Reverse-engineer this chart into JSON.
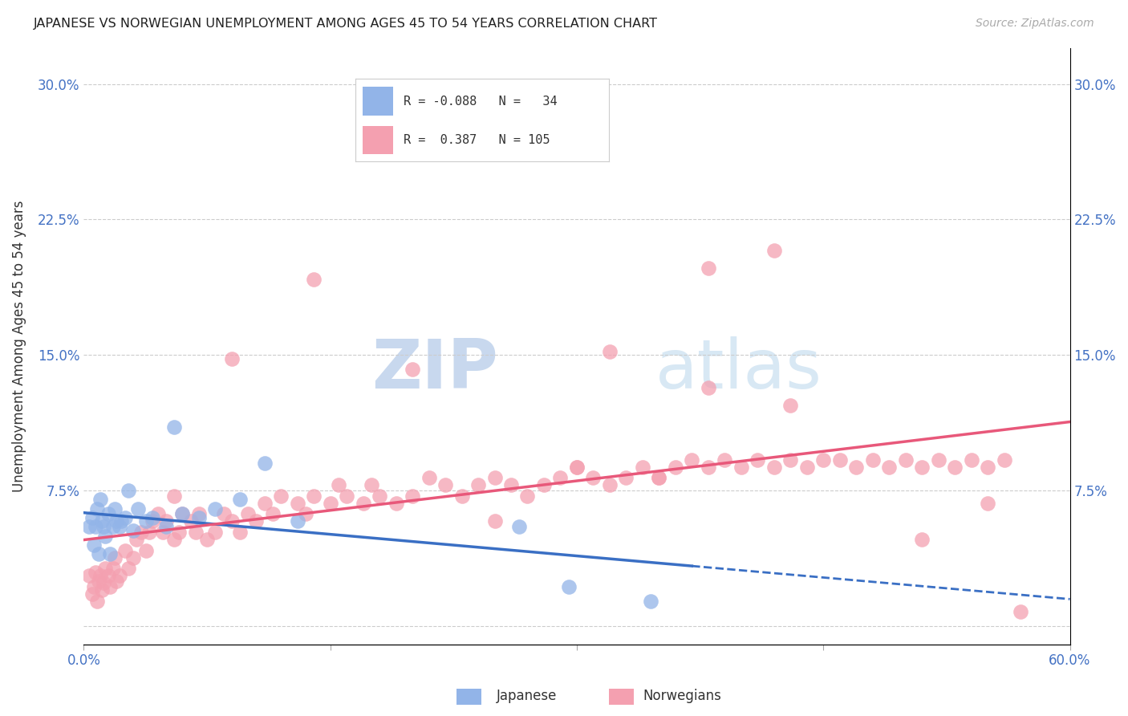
{
  "title": "JAPANESE VS NORWEGIAN UNEMPLOYMENT AMONG AGES 45 TO 54 YEARS CORRELATION CHART",
  "source": "Source: ZipAtlas.com",
  "ylabel": "Unemployment Among Ages 45 to 54 years",
  "xlim": [
    0.0,
    0.6
  ],
  "ylim": [
    -0.01,
    0.32
  ],
  "legend_r_japanese": "-0.088",
  "legend_n_japanese": "34",
  "legend_r_norwegian": "0.387",
  "legend_n_norwegian": "105",
  "japanese_color": "#92b4e8",
  "norwegian_color": "#f4a0b0",
  "japanese_line_color": "#3a6fc4",
  "norwegian_line_color": "#e8587a",
  "background_color": "#ffffff",
  "grid_color": "#cccccc",
  "japanese_x": [
    0.003,
    0.005,
    0.006,
    0.007,
    0.008,
    0.009,
    0.01,
    0.011,
    0.012,
    0.013,
    0.015,
    0.016,
    0.018,
    0.019,
    0.02,
    0.022,
    0.023,
    0.025,
    0.027,
    0.03,
    0.033,
    0.038,
    0.042,
    0.05,
    0.055,
    0.06,
    0.07,
    0.08,
    0.095,
    0.11,
    0.13,
    0.265,
    0.295,
    0.345
  ],
  "japanese_y": [
    0.055,
    0.06,
    0.045,
    0.055,
    0.065,
    0.04,
    0.07,
    0.058,
    0.055,
    0.05,
    0.062,
    0.04,
    0.055,
    0.065,
    0.058,
    0.055,
    0.058,
    0.06,
    0.075,
    0.053,
    0.065,
    0.058,
    0.06,
    0.055,
    0.11,
    0.062,
    0.06,
    0.065,
    0.07,
    0.09,
    0.058,
    0.055,
    0.022,
    0.014
  ],
  "norwegian_x": [
    0.003,
    0.005,
    0.006,
    0.007,
    0.008,
    0.009,
    0.01,
    0.011,
    0.012,
    0.013,
    0.015,
    0.016,
    0.018,
    0.019,
    0.02,
    0.022,
    0.025,
    0.027,
    0.03,
    0.032,
    0.035,
    0.038,
    0.04,
    0.042,
    0.045,
    0.048,
    0.05,
    0.055,
    0.058,
    0.06,
    0.065,
    0.068,
    0.07,
    0.075,
    0.08,
    0.085,
    0.09,
    0.095,
    0.1,
    0.105,
    0.11,
    0.115,
    0.12,
    0.13,
    0.135,
    0.14,
    0.15,
    0.155,
    0.16,
    0.17,
    0.175,
    0.18,
    0.19,
    0.2,
    0.21,
    0.22,
    0.23,
    0.24,
    0.25,
    0.26,
    0.27,
    0.28,
    0.29,
    0.3,
    0.31,
    0.32,
    0.33,
    0.34,
    0.35,
    0.36,
    0.37,
    0.38,
    0.39,
    0.4,
    0.41,
    0.42,
    0.43,
    0.44,
    0.45,
    0.46,
    0.47,
    0.48,
    0.49,
    0.5,
    0.51,
    0.52,
    0.53,
    0.54,
    0.55,
    0.56,
    0.055,
    0.09,
    0.14,
    0.2,
    0.32,
    0.38,
    0.43,
    0.35,
    0.51,
    0.55,
    0.38,
    0.42,
    0.25,
    0.3,
    0.57
  ],
  "norwegian_y": [
    0.028,
    0.018,
    0.022,
    0.03,
    0.014,
    0.025,
    0.028,
    0.02,
    0.024,
    0.032,
    0.028,
    0.022,
    0.032,
    0.038,
    0.025,
    0.028,
    0.042,
    0.032,
    0.038,
    0.048,
    0.052,
    0.042,
    0.052,
    0.058,
    0.062,
    0.052,
    0.058,
    0.048,
    0.052,
    0.062,
    0.058,
    0.052,
    0.062,
    0.048,
    0.052,
    0.062,
    0.058,
    0.052,
    0.062,
    0.058,
    0.068,
    0.062,
    0.072,
    0.068,
    0.062,
    0.072,
    0.068,
    0.078,
    0.072,
    0.068,
    0.078,
    0.072,
    0.068,
    0.072,
    0.082,
    0.078,
    0.072,
    0.078,
    0.082,
    0.078,
    0.072,
    0.078,
    0.082,
    0.088,
    0.082,
    0.078,
    0.082,
    0.088,
    0.082,
    0.088,
    0.092,
    0.088,
    0.092,
    0.088,
    0.092,
    0.088,
    0.092,
    0.088,
    0.092,
    0.092,
    0.088,
    0.092,
    0.088,
    0.092,
    0.088,
    0.092,
    0.088,
    0.092,
    0.088,
    0.092,
    0.072,
    0.148,
    0.192,
    0.142,
    0.152,
    0.132,
    0.122,
    0.082,
    0.048,
    0.068,
    0.198,
    0.208,
    0.058,
    0.088,
    0.008
  ]
}
